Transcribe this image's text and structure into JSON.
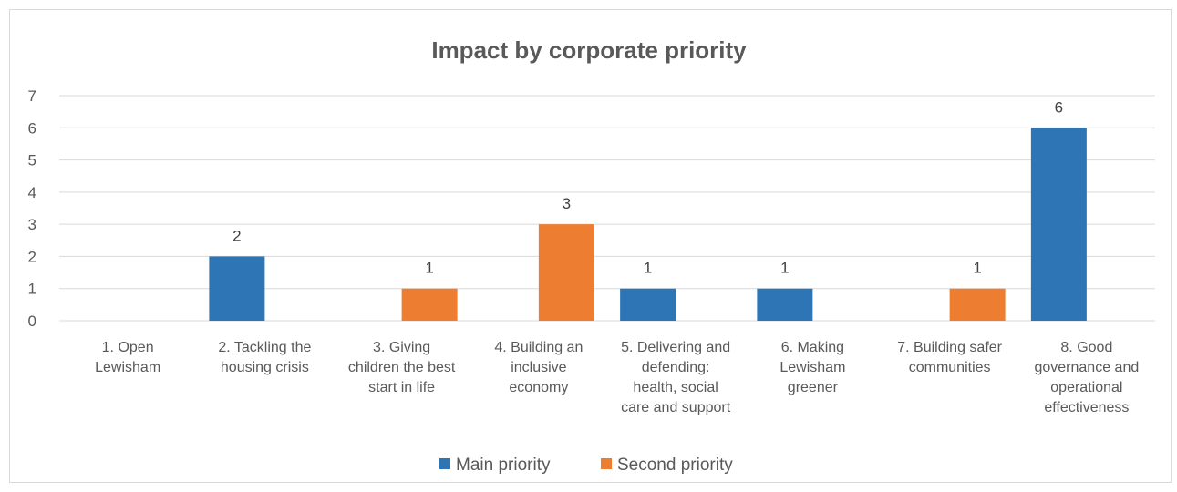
{
  "chart_data": {
    "type": "bar",
    "title": "Impact by corporate priority",
    "xlabel": "",
    "ylabel": "",
    "ylim": [
      0,
      7
    ],
    "yticks": [
      0,
      1,
      2,
      3,
      4,
      5,
      6,
      7
    ],
    "grid": true,
    "legend_position": "bottom",
    "categories": [
      [
        "1. Open",
        "Lewisham"
      ],
      [
        "2. Tackling the",
        "housing crisis"
      ],
      [
        "3. Giving",
        "children the best",
        "start in life"
      ],
      [
        "4. Building an",
        "inclusive",
        "economy"
      ],
      [
        "5. Delivering and",
        "defending:",
        "health, social",
        "care and support"
      ],
      [
        "6. Making",
        "Lewisham",
        "greener"
      ],
      [
        "7. Building safer",
        "communities"
      ],
      [
        "8. Good",
        "governance and",
        "operational",
        "effectiveness"
      ]
    ],
    "series": [
      {
        "name": "Main priority",
        "color": "#2e75b6",
        "values": [
          0,
          2,
          0,
          0,
          1,
          1,
          0,
          6
        ]
      },
      {
        "name": "Second priority",
        "color": "#ed7d31",
        "values": [
          0,
          0,
          1,
          3,
          0,
          0,
          1,
          0
        ]
      }
    ]
  }
}
